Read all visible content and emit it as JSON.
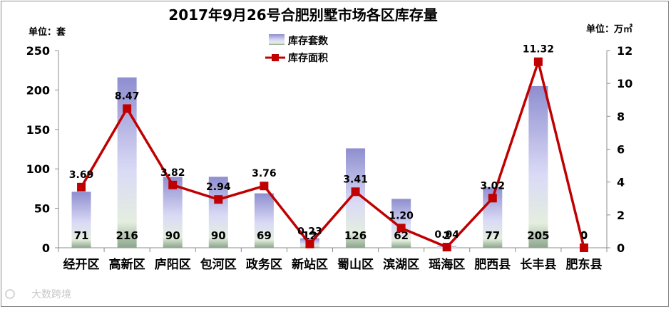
{
  "chart_data": {
    "type": "bar",
    "title": "2017年9月26号合肥别墅市场各区库存量",
    "ylabel": "单位：套",
    "y2label": "单位：万㎡",
    "categories": [
      "经开区",
      "高新区",
      "庐阳区",
      "包河区",
      "政务区",
      "新站区",
      "蜀山区",
      "滨湖区",
      "瑶海区",
      "肥西县",
      "长丰县",
      "肥东县"
    ],
    "series": [
      {
        "name": "库存套数",
        "type": "bar",
        "axis": "left",
        "values": [
          71,
          216,
          90,
          90,
          69,
          12,
          126,
          62,
          2,
          77,
          205,
          0
        ]
      },
      {
        "name": "库存面积",
        "type": "line",
        "axis": "right",
        "values": [
          3.69,
          8.47,
          3.82,
          2.94,
          3.76,
          0.23,
          3.41,
          1.2,
          0.04,
          3.02,
          11.32,
          0
        ],
        "labels": [
          "3.69",
          "8.47",
          "3.82",
          "2.94",
          "3.76",
          "0.23",
          "3.41",
          "1.20",
          "0.04",
          "3.02",
          "11.32",
          "0"
        ]
      }
    ],
    "ylim": [
      0,
      250
    ],
    "yticks": [
      "0",
      "50",
      "100",
      "150",
      "200",
      "250"
    ],
    "y2lim": [
      0,
      12
    ],
    "y2ticks": [
      "0",
      "2",
      "4",
      "6",
      "8",
      "10",
      "12"
    ],
    "grid": false,
    "legend": "top-center",
    "colors": {
      "bar_top": "#8e8ed0",
      "bar_mid": "#dadaf6",
      "bar_base": "#8ca68c",
      "line": "#c00000"
    }
  },
  "watermark": "大数跨境"
}
